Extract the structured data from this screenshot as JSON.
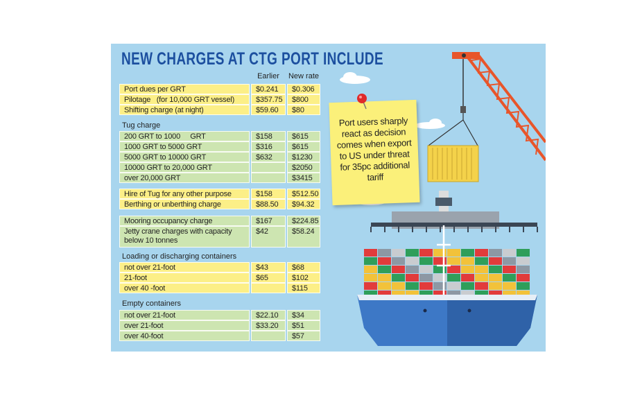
{
  "header": {
    "title": "NEW CHARGES AT CTG PORT INCLUDE"
  },
  "table": {
    "columns": [
      "Earlier",
      "New rate"
    ],
    "sections": [
      {
        "rows": [
          [
            "Port dues per GRT",
            "$0.241",
            "$0.306"
          ],
          [
            "Pilotage   (for 10,000 GRT vessel)",
            "$357.75",
            "$800"
          ],
          [
            "Shifting charge (at night)",
            "$59.60",
            "$80"
          ]
        ]
      },
      {
        "heading": "Tug charge",
        "rows": [
          [
            "200 GRT to 1000     GRT",
            "$158",
            "$615"
          ],
          [
            "1000 GRT to 5000 GRT",
            "$316",
            "$615"
          ],
          [
            "5000 GRT to 10000 GRT",
            "$632",
            "$1230"
          ],
          [
            "10000 GRT to 20,000 GRT",
            null,
            "$2050"
          ],
          [
            "over 20,000 GRT",
            null,
            "$3415"
          ]
        ]
      },
      {
        "rows": [
          [
            "Hire of Tug for any other purpose",
            "$158",
            "$512.50"
          ],
          [
            "Berthing or unberthing charge",
            "$88.50",
            "$94.32"
          ]
        ]
      },
      {
        "rows": [
          [
            "Mooring occupancy charge",
            "$167",
            "$224.85"
          ],
          [
            "Jetty crane charges with capacity below 10 tonnes",
            "$42",
            "$58.24"
          ]
        ]
      },
      {
        "heading": "Loading or discharging containers",
        "rows": [
          [
            "not over 21-foot",
            "$43",
            "$68"
          ],
          [
            "21-foot",
            "$65",
            "$102"
          ],
          [
            "over 40 -foot",
            null,
            "$115"
          ]
        ]
      },
      {
        "heading": "Empty containers",
        "rows": [
          [
            "not over 21-foot",
            "$22.10",
            "$34"
          ],
          [
            "over 21-foot",
            "$33.20",
            "$51"
          ],
          [
            "over 40-foot",
            null,
            "$57"
          ]
        ]
      }
    ]
  },
  "note": {
    "text": "Port users sharply react as decision comes when export to US under threat for 35pc additional tariff"
  }
}
